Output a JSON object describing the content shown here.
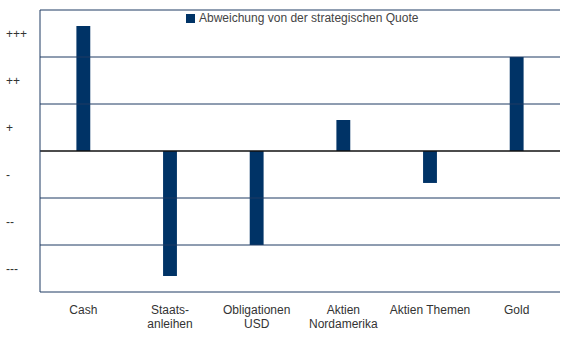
{
  "chart_data": {
    "type": "bar",
    "categories": [
      "Cash",
      "Staats-\nanleihen",
      "Obligationen\nUSD",
      "Aktien\nNordamerika",
      "Aktien Themen",
      "Gold"
    ],
    "series": [
      {
        "name": "Abweichung von der strategischen Quote",
        "color": "#003366",
        "values": [
          2.66,
          -2.66,
          -2.0,
          0.66,
          -0.68,
          2.0
        ]
      }
    ],
    "ylim": [
      -3,
      3
    ],
    "yticks": [
      {
        "value": 2.5,
        "label": "+++"
      },
      {
        "value": 1.5,
        "label": "++"
      },
      {
        "value": 0.5,
        "label": "+"
      },
      {
        "value": -0.5,
        "label": "-"
      },
      {
        "value": -1.5,
        "label": "--"
      },
      {
        "value": -2.5,
        "label": "---"
      }
    ],
    "grid": true
  }
}
